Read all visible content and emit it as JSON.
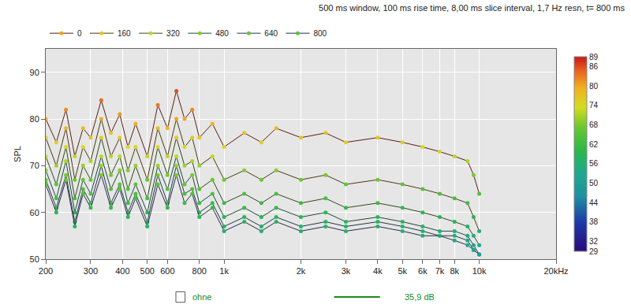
{
  "chart_data": {
    "type": "line",
    "title": "500 ms window, 100 ms rise time, 8,00 ms slice interval, 1,7 Hz resn, t= 800 ms",
    "y_label": "SPL",
    "log": "x",
    "grid": true,
    "legend": "top",
    "x": [
      200,
      220,
      240,
      260,
      280,
      300,
      330,
      360,
      390,
      420,
      450,
      500,
      550,
      600,
      650,
      700,
      750,
      800,
      900,
      1000,
      1200,
      1400,
      1600,
      2000,
      2500,
      3000,
      4000,
      5000,
      6000,
      7000,
      8000,
      9000,
      9500,
      10000
    ],
    "series": [
      {
        "name": "0",
        "values": [
          80,
          75,
          82,
          72,
          78,
          76,
          84,
          77,
          81,
          74,
          79,
          72,
          83,
          78,
          86,
          80,
          82,
          76,
          79,
          74,
          77,
          75,
          78,
          76,
          77,
          75,
          76,
          75,
          74,
          73,
          72,
          71,
          68,
          64
        ]
      },
      {
        "name": "160",
        "values": [
          76,
          70,
          78,
          67,
          74,
          71,
          80,
          72,
          76,
          69,
          74,
          67,
          78,
          72,
          80,
          74,
          76,
          70,
          72,
          67,
          69,
          67,
          69,
          67,
          68,
          66,
          67,
          66,
          65,
          64,
          63,
          62,
          59,
          56
        ]
      },
      {
        "name": "320",
        "values": [
          72,
          66,
          74,
          63,
          70,
          67,
          76,
          68,
          72,
          65,
          70,
          63,
          74,
          68,
          76,
          70,
          71,
          65,
          67,
          62,
          64,
          62,
          64,
          62,
          63,
          61,
          62,
          61,
          60,
          59,
          58,
          57,
          55,
          53
        ]
      },
      {
        "name": "480",
        "values": [
          69,
          63,
          71,
          60,
          67,
          64,
          72,
          65,
          69,
          62,
          66,
          60,
          70,
          65,
          72,
          66,
          68,
          62,
          64,
          59,
          61,
          59,
          61,
          59,
          60,
          58,
          59,
          58,
          57,
          56,
          56,
          55,
          53,
          51
        ]
      },
      {
        "name": "640",
        "values": [
          67,
          61,
          68,
          58,
          65,
          62,
          70,
          62,
          66,
          60,
          64,
          58,
          68,
          62,
          70,
          64,
          65,
          60,
          62,
          57,
          59,
          57,
          59,
          57,
          58,
          57,
          58,
          57,
          56,
          55,
          55,
          54,
          52,
          51
        ]
      },
      {
        "name": "800",
        "values": [
          66,
          60,
          67,
          57,
          64,
          61,
          68,
          61,
          65,
          59,
          63,
          57,
          66,
          61,
          68,
          62,
          64,
          59,
          61,
          56,
          58,
          56,
          58,
          56,
          57,
          56,
          57,
          56,
          55,
          55,
          54,
          53,
          52,
          51
        ]
      }
    ],
    "xlim": [
      200,
      20000
    ],
    "xticks": [
      200,
      300,
      400,
      500,
      600,
      800,
      {
        "value": 1000,
        "label": "1k"
      },
      {
        "value": 2000,
        "label": "2k"
      },
      {
        "value": 3000,
        "label": "3k"
      },
      {
        "value": 4000,
        "label": "4k"
      },
      {
        "value": 5000,
        "label": "5k"
      },
      {
        "value": 6000,
        "label": "6k"
      },
      {
        "value": 7000,
        "label": "7k"
      },
      {
        "value": 8000,
        "label": "8k"
      },
      {
        "value": 10000,
        "label": "10k"
      },
      {
        "value": 20000,
        "label": "20kHz"
      }
    ],
    "ylim": [
      50,
      95
    ],
    "yticks": [
      50,
      60,
      70,
      80,
      90
    ],
    "colorbar": {
      "range": [
        29,
        89
      ],
      "ticks": [
        29,
        32,
        38,
        44,
        50,
        56,
        62,
        68,
        74,
        80,
        86,
        89
      ]
    },
    "annotations": [
      "ohne",
      "35,9 dB"
    ]
  }
}
